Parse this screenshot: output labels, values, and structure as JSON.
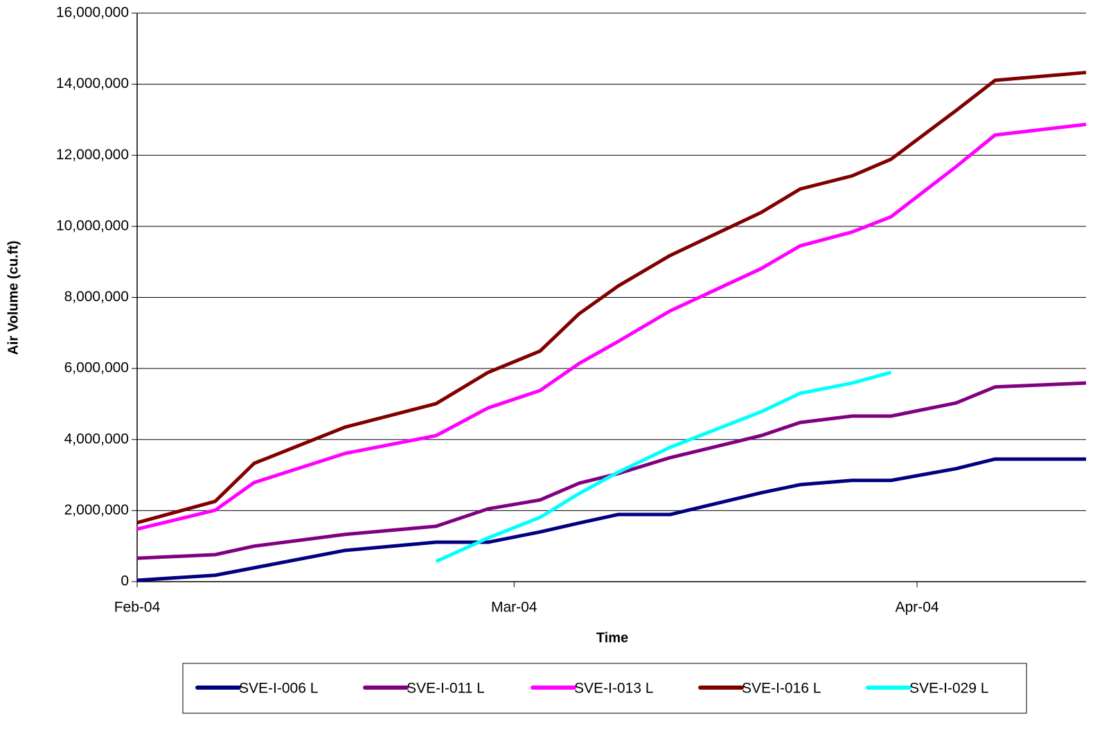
{
  "chart_data": {
    "type": "line",
    "y_label": "Air Volume (cu.ft)",
    "x_label": "Time",
    "x": [
      0,
      6,
      9,
      16,
      23,
      27,
      31,
      34,
      37,
      41,
      48,
      51,
      55,
      58,
      63,
      66,
      73
    ],
    "xlim": [
      0,
      73
    ],
    "xticks": [
      {
        "value": 0,
        "label": "Feb-04"
      },
      {
        "value": 29,
        "label": "Mar-04"
      },
      {
        "value": 60,
        "label": "Apr-04"
      }
    ],
    "ylim": [
      0,
      16000000
    ],
    "yticks": [
      {
        "value": 0,
        "label": "0"
      },
      {
        "value": 2000000,
        "label": "2,000,000"
      },
      {
        "value": 4000000,
        "label": "4,000,000"
      },
      {
        "value": 6000000,
        "label": "6,000,000"
      },
      {
        "value": 8000000,
        "label": "8,000,000"
      },
      {
        "value": 10000000,
        "label": "10,000,000"
      },
      {
        "value": 12000000,
        "label": "12,000,000"
      },
      {
        "value": 14000000,
        "label": "14,000,000"
      },
      {
        "value": 16000000,
        "label": "16,000,000"
      }
    ],
    "grid": true,
    "legend": "bottom",
    "series": [
      {
        "name": "SVE-I-006 L",
        "color": "#000080",
        "values": [
          40000,
          180000,
          390000,
          880000,
          1110000,
          1110000,
          1400000,
          1650000,
          1890000,
          1890000,
          2500000,
          2730000,
          2850000,
          2850000,
          3180000,
          3450000,
          3450000
        ]
      },
      {
        "name": "SVE-I-011 L",
        "color": "#800080",
        "values": [
          660000,
          760000,
          1000000,
          1330000,
          1560000,
          2050000,
          2300000,
          2770000,
          3040000,
          3490000,
          4110000,
          4480000,
          4660000,
          4660000,
          5030000,
          5480000,
          5590000
        ]
      },
      {
        "name": "SVE-I-013 L",
        "color": "#ff00ff",
        "values": [
          1480000,
          2010000,
          2790000,
          3610000,
          4110000,
          4890000,
          5380000,
          6140000,
          6760000,
          7620000,
          8810000,
          9450000,
          9840000,
          10270000,
          11680000,
          12570000,
          12870000
        ]
      },
      {
        "name": "SVE-I-016 L",
        "color": "#800000",
        "values": [
          1660000,
          2260000,
          3330000,
          4350000,
          5010000,
          5890000,
          6490000,
          7540000,
          8320000,
          9180000,
          10390000,
          11050000,
          11420000,
          11890000,
          13260000,
          14110000,
          14330000
        ]
      },
      {
        "name": "SVE-I-029 L",
        "color": "#00ffff",
        "values": [
          null,
          null,
          null,
          null,
          570000,
          1230000,
          1810000,
          2480000,
          3080000,
          3780000,
          4780000,
          5300000,
          5590000,
          5890000,
          null,
          null,
          null
        ]
      }
    ]
  }
}
